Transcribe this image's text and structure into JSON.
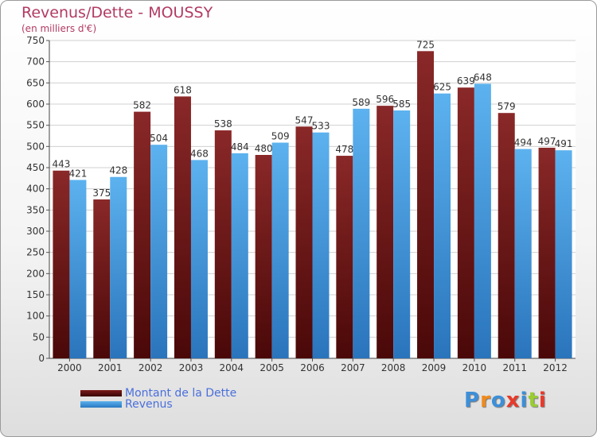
{
  "chart_data": {
    "type": "bar",
    "title": "Revenus/Dette - MOUSSY",
    "subtitle": "(en milliers d'€)",
    "categories": [
      "2000",
      "2001",
      "2002",
      "2003",
      "2004",
      "2005",
      "2006",
      "2007",
      "2008",
      "2009",
      "2010",
      "2011",
      "2012"
    ],
    "series": [
      {
        "name": "Montant de la Dette",
        "color": "#7a1a1a",
        "values": [
          443,
          375,
          582,
          618,
          538,
          480,
          547,
          478,
          596,
          725,
          639,
          579,
          497
        ]
      },
      {
        "name": "Revenus",
        "color": "#3a94dc",
        "values": [
          421,
          428,
          504,
          468,
          484,
          509,
          533,
          589,
          585,
          625,
          648,
          494,
          491
        ]
      }
    ],
    "ylim": [
      0,
      750
    ],
    "yticks": [
      0,
      50,
      100,
      150,
      200,
      250,
      300,
      350,
      400,
      450,
      500,
      550,
      600,
      650,
      700,
      750
    ],
    "grid": true,
    "legend_position": "bottom-left"
  },
  "logo": {
    "text": "Proxiti",
    "colors": [
      "#3d8fd8",
      "#f08a1c",
      "#3d8fd8",
      "#e83a2a",
      "#3d8fd8",
      "#9acd32",
      "#e83a2a"
    ]
  }
}
